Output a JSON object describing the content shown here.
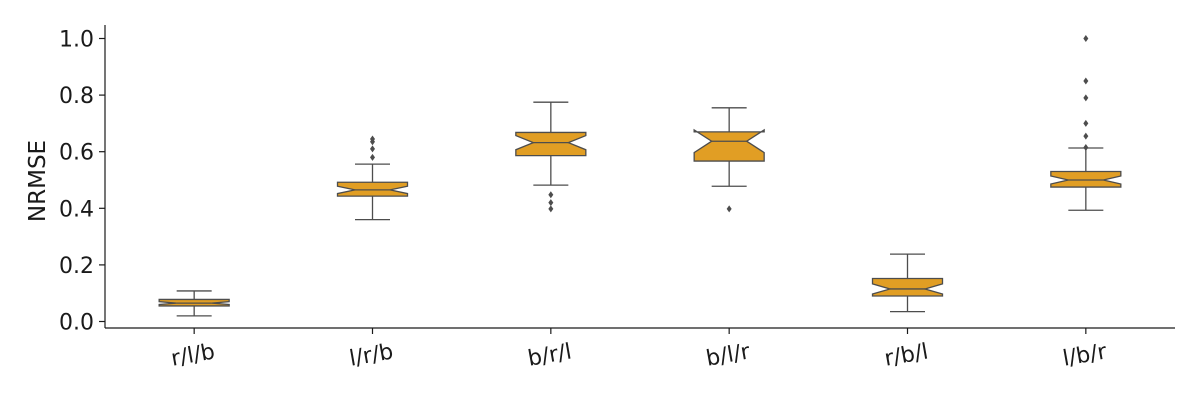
{
  "chart_data": {
    "type": "box",
    "notched": true,
    "ylabel": "NRMSE",
    "xlabel": "",
    "ylim": [
      -0.025,
      1.05
    ],
    "yticks": [
      0.0,
      0.2,
      0.4,
      0.6,
      0.8,
      1.0
    ],
    "ytick_labels": [
      "0.0",
      "0.2",
      "0.4",
      "0.6",
      "0.8",
      "1.0"
    ],
    "categories": [
      "r/l/b",
      "l/r/b",
      "b/r/l",
      "b/l/r",
      "r/b/l",
      "l/b/r"
    ],
    "boxes": [
      {
        "whisker_low": 0.02,
        "q1": 0.055,
        "median": 0.065,
        "q3": 0.078,
        "whisker_high": 0.108,
        "notch": [
          0.06,
          0.07
        ],
        "outliers": []
      },
      {
        "whisker_low": 0.36,
        "q1": 0.443,
        "median": 0.465,
        "q3": 0.492,
        "whisker_high": 0.556,
        "notch": [
          0.452,
          0.478
        ],
        "outliers": [
          0.58,
          0.61,
          0.635,
          0.645
        ]
      },
      {
        "whisker_low": 0.482,
        "q1": 0.586,
        "median": 0.632,
        "q3": 0.668,
        "whisker_high": 0.775,
        "notch": [
          0.607,
          0.657
        ],
        "outliers": [
          0.398,
          0.42,
          0.448
        ]
      },
      {
        "whisker_low": 0.478,
        "q1": 0.567,
        "median": 0.637,
        "q3": 0.67,
        "whisker_high": 0.755,
        "notch": [
          0.597,
          0.677
        ],
        "outliers": [
          0.398
        ]
      },
      {
        "whisker_low": 0.035,
        "q1": 0.09,
        "median": 0.115,
        "q3": 0.152,
        "whisker_high": 0.238,
        "notch": [
          0.097,
          0.133
        ],
        "outliers": []
      },
      {
        "whisker_low": 0.393,
        "q1": 0.475,
        "median": 0.5,
        "q3": 0.53,
        "whisker_high": 0.613,
        "notch": [
          0.486,
          0.514
        ],
        "outliers": [
          0.615,
          0.655,
          0.7,
          0.79,
          0.85,
          1.0
        ]
      }
    ],
    "colors": {
      "box_fill": "#e19e24",
      "box_edge": "#4d4d4d",
      "outlier": "#4d4d4d",
      "axis": "#1a1a1a"
    },
    "grid": false,
    "spines": [
      "left",
      "bottom"
    ]
  }
}
